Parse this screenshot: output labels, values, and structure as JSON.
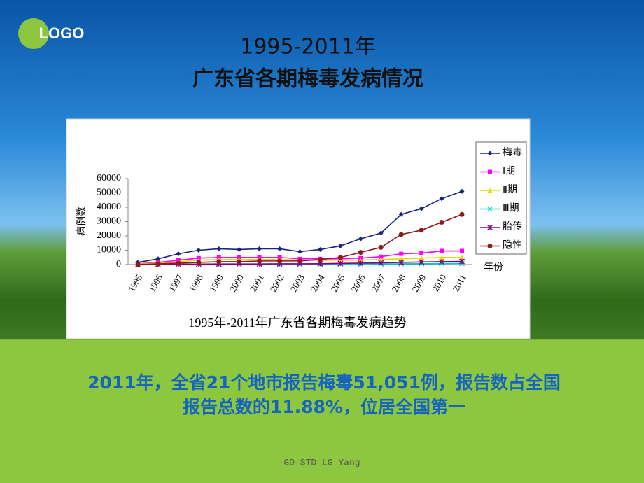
{
  "logo": "LOGO",
  "title_lines": [
    "1995-2011年",
    "广东省各期梅毒发病情况"
  ],
  "chart_data": {
    "type": "line",
    "title": "1995年-2011年广东省各期梅毒发病趋势",
    "x_label": "年份",
    "y_label": "病例数",
    "categories": [
      "1995",
      "1996",
      "1997",
      "1998",
      "1999",
      "2000",
      "2001",
      "2002",
      "2003",
      "2004",
      "2005",
      "2006",
      "2007",
      "2008",
      "2009",
      "2010",
      "2011"
    ],
    "ylim": [
      0,
      60000
    ],
    "yticks": [
      0,
      10000,
      20000,
      30000,
      40000,
      50000,
      60000
    ],
    "legend": "right",
    "series": [
      {
        "name": "梅毒",
        "color": "#1a237e",
        "marker": "diamond",
        "values": [
          1500,
          4000,
          7500,
          10000,
          11000,
          10500,
          11000,
          11000,
          9000,
          10500,
          13000,
          18000,
          22000,
          35000,
          39000,
          46000,
          51051
        ]
      },
      {
        "name": "Ⅰ期",
        "color": "#ff00ff",
        "marker": "square",
        "values": [
          500,
          1500,
          3000,
          4500,
          5000,
          5000,
          5000,
          5000,
          4000,
          4000,
          4000,
          4500,
          5500,
          7500,
          8000,
          9500,
          9500
        ]
      },
      {
        "name": "Ⅱ期",
        "color": "#e6d800",
        "marker": "triangle",
        "values": [
          300,
          1000,
          2000,
          3000,
          3500,
          3500,
          3500,
          3500,
          3000,
          3000,
          3000,
          3000,
          3500,
          4000,
          4500,
          5000,
          5000
        ]
      },
      {
        "name": "Ⅲ期",
        "color": "#00cccc",
        "marker": "x",
        "values": [
          0,
          100,
          200,
          300,
          300,
          300,
          300,
          300,
          200,
          200,
          300,
          300,
          400,
          500,
          600,
          700,
          800
        ]
      },
      {
        "name": "胎传",
        "color": "#800080",
        "marker": "star",
        "values": [
          0,
          100,
          200,
          300,
          400,
          400,
          400,
          500,
          500,
          600,
          800,
          1000,
          1200,
          1500,
          1800,
          2000,
          2200
        ]
      },
      {
        "name": "隐性",
        "color": "#8b1a1a",
        "marker": "circle",
        "values": [
          0,
          500,
          1000,
          1500,
          2000,
          2000,
          2500,
          2500,
          2500,
          3500,
          5000,
          8500,
          12000,
          21000,
          24000,
          29500,
          35000
        ]
      }
    ]
  },
  "caption_lines": [
    "2011年，全省21个地市报告梅毒51,051例，报告数占全国",
    "报告总数的11.88%，位居全国第一"
  ],
  "footer": "GD STD LG Yang"
}
